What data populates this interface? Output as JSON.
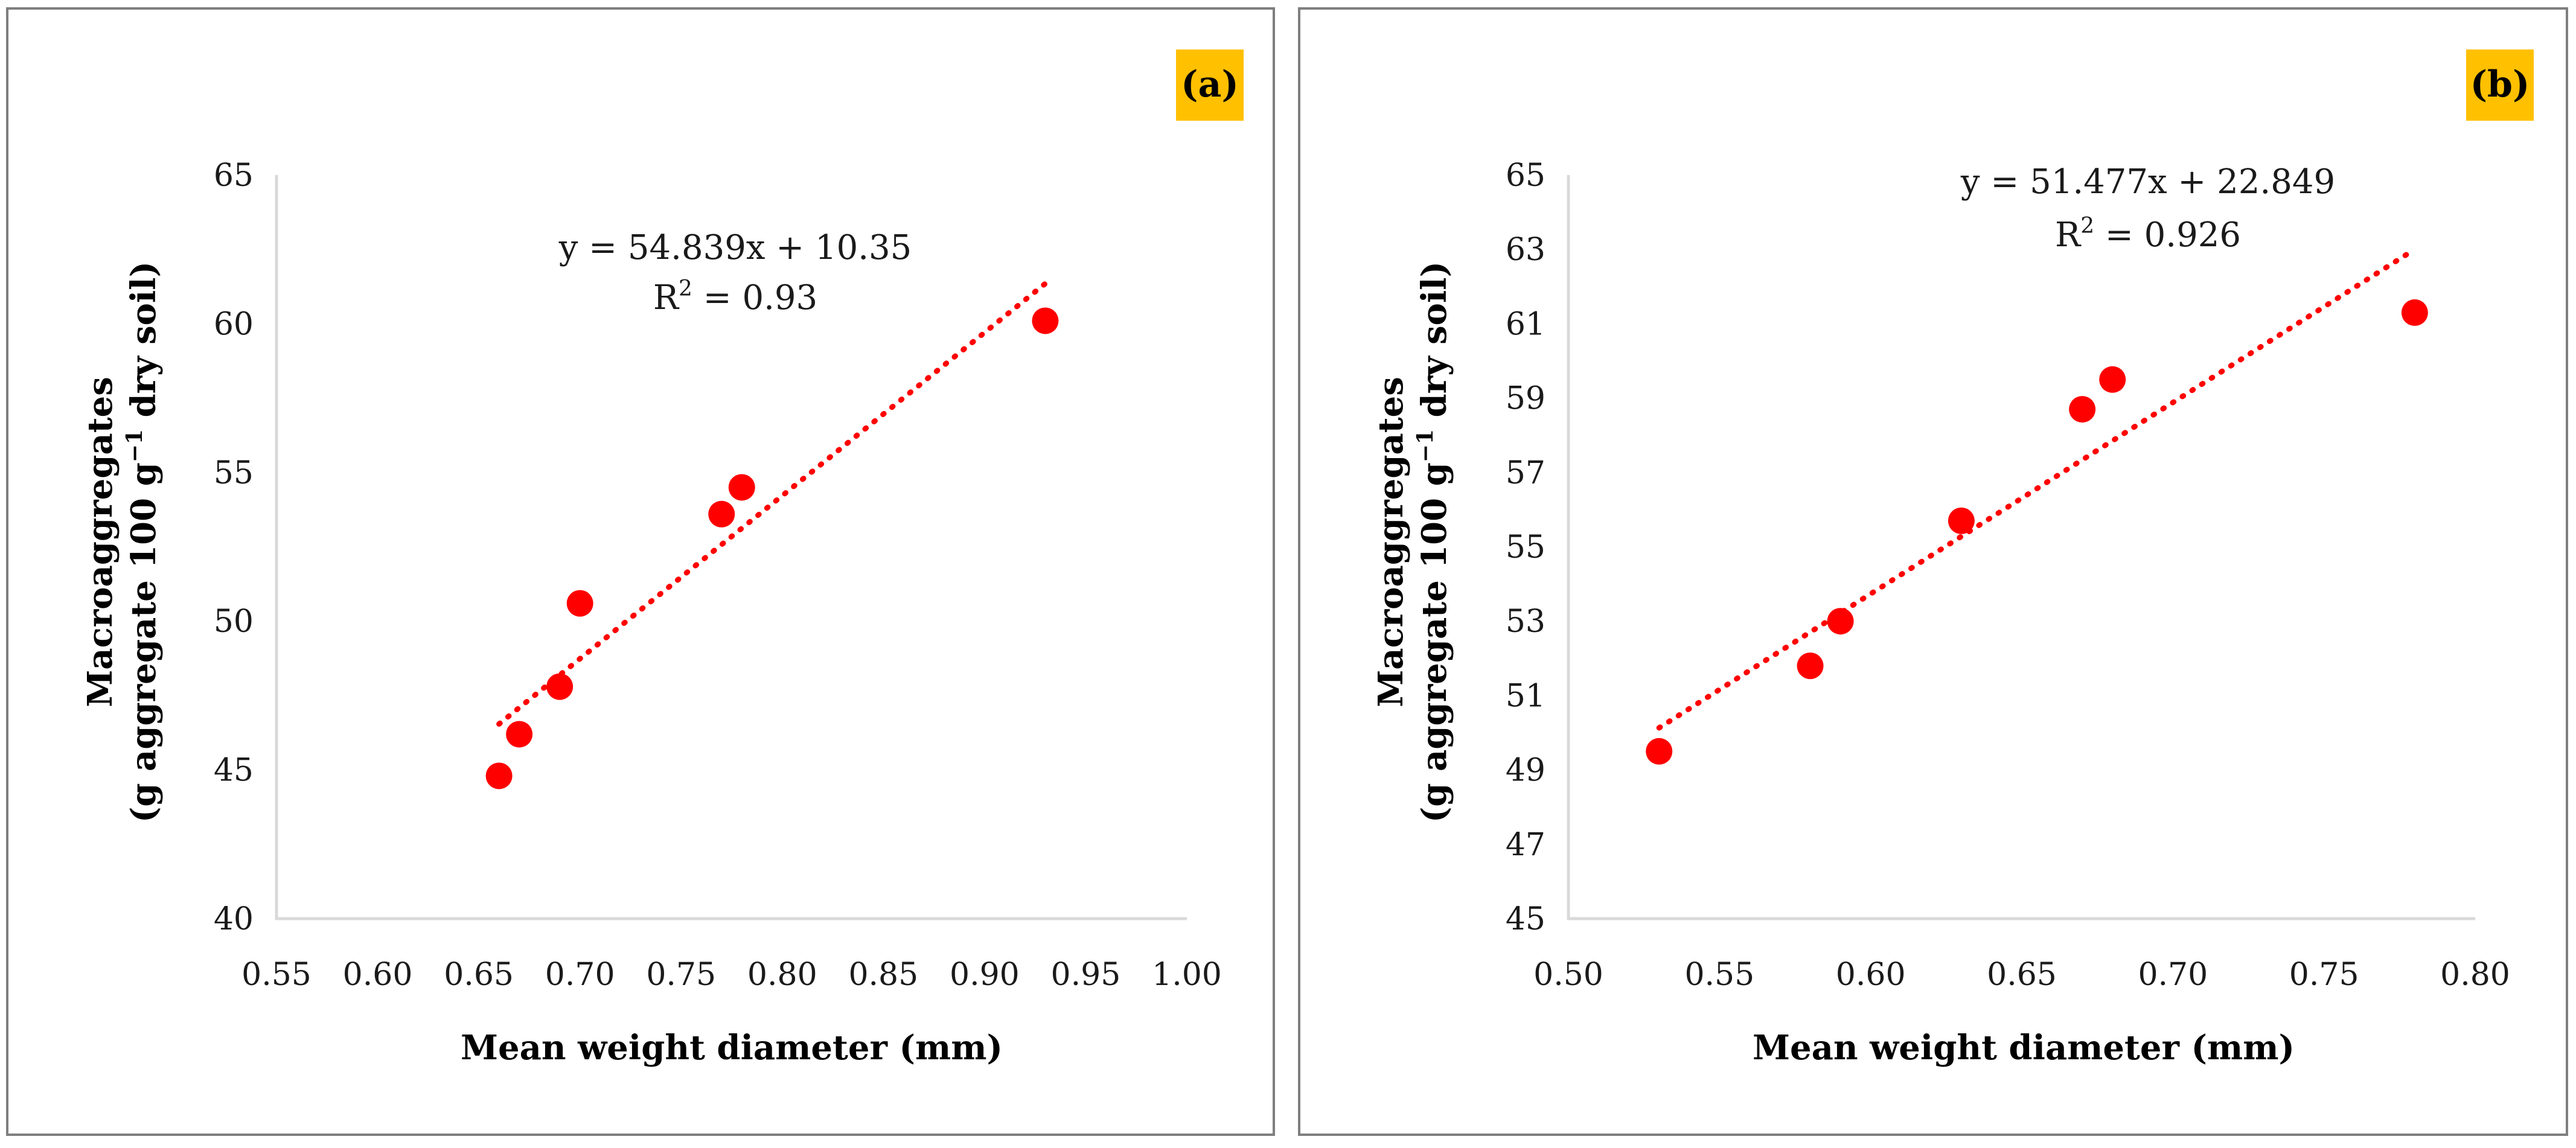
{
  "chart_data": [
    {
      "type": "scatter",
      "panel_label": "(a)",
      "xlabel": "Mean weight diameter (mm)",
      "ylabel_line1": "Macroaggregates",
      "ylabel_line2_prefix": "(g aggregate 100 g",
      "ylabel_line2_sup": "−1",
      "ylabel_line2_suffix": " dry soil)",
      "xlim": [
        0.55,
        1.0
      ],
      "ylim": [
        40,
        65
      ],
      "xticks": [
        "0.55",
        "0.60",
        "0.65",
        "0.70",
        "0.75",
        "0.80",
        "0.85",
        "0.90",
        "0.95",
        "1.00"
      ],
      "yticks": [
        "40",
        "45",
        "50",
        "55",
        "60",
        "65"
      ],
      "points": [
        {
          "x": 0.66,
          "y": 44.8
        },
        {
          "x": 0.67,
          "y": 46.2
        },
        {
          "x": 0.69,
          "y": 47.8
        },
        {
          "x": 0.7,
          "y": 50.6
        },
        {
          "x": 0.77,
          "y": 53.6
        },
        {
          "x": 0.78,
          "y": 54.5
        },
        {
          "x": 0.93,
          "y": 60.1
        }
      ],
      "trendline": {
        "slope": 54.839,
        "intercept": 10.35,
        "x_range": [
          0.66,
          0.93
        ]
      },
      "equation": "y = 54.839x + 10.35",
      "r2_prefix": "R",
      "r2_sup": "2",
      "r2_suffix": " = 0.93",
      "marker_color": "#ff0000"
    },
    {
      "type": "scatter",
      "panel_label": "(b)",
      "xlabel": "Mean weight diameter (mm)",
      "ylabel_line1": "Macroaggregates",
      "ylabel_line2_prefix": "(g aggregate 100 g",
      "ylabel_line2_sup": "−1",
      "ylabel_line2_suffix": " dry soil)",
      "xlim": [
        0.5,
        0.8
      ],
      "ylim": [
        45,
        65
      ],
      "xticks": [
        "0.50",
        "0.55",
        "0.60",
        "0.65",
        "0.70",
        "0.75",
        "0.80"
      ],
      "yticks": [
        "45",
        "47",
        "49",
        "51",
        "53",
        "55",
        "57",
        "59",
        "61",
        "63",
        "65"
      ],
      "points": [
        {
          "x": 0.53,
          "y": 49.5
        },
        {
          "x": 0.58,
          "y": 51.8
        },
        {
          "x": 0.59,
          "y": 53.0
        },
        {
          "x": 0.63,
          "y": 55.7
        },
        {
          "x": 0.67,
          "y": 58.7
        },
        {
          "x": 0.68,
          "y": 59.5
        },
        {
          "x": 0.78,
          "y": 61.3
        }
      ],
      "trendline": {
        "slope": 51.477,
        "intercept": 22.849,
        "x_range": [
          0.53,
          0.78
        ]
      },
      "equation": "y = 51.477x + 22.849",
      "r2_prefix": "R",
      "r2_sup": "2",
      "r2_suffix": " = 0.926",
      "marker_color": "#ff0000"
    }
  ]
}
